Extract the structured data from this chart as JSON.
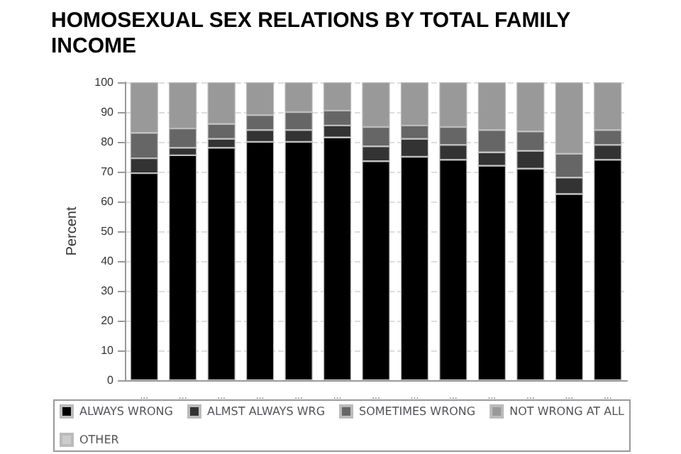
{
  "chart_data": {
    "type": "bar",
    "title": "HOMOSEXUAL SEX RELATIONS BY TOTAL FAMILY INCOME",
    "ylabel": "Percent",
    "stacked": true,
    "categories": [
      "...",
      "...",
      "...",
      "...",
      "...",
      "...",
      "...",
      "...",
      "...",
      "...",
      "...",
      "...",
      "..."
    ],
    "series": [
      {
        "name": "ALWAYS WRONG",
        "color": "#000000",
        "values": [
          69.5,
          75.5,
          78,
          80,
          80,
          81.5,
          73.5,
          75,
          74,
          72,
          71,
          62.5,
          74
        ]
      },
      {
        "name": "ALMST ALWAYS WRG",
        "color": "#333333",
        "values": [
          5,
          2.5,
          3,
          4,
          4,
          4,
          5,
          6,
          5,
          4.5,
          6,
          5.5,
          5
        ]
      },
      {
        "name": "SOMETIMES WRONG",
        "color": "#666666",
        "values": [
          8.5,
          6.5,
          5,
          5,
          6,
          5,
          6.5,
          4.5,
          6,
          7.5,
          6.5,
          8,
          5
        ]
      },
      {
        "name": "NOT WRONG AT ALL",
        "color": "#999999",
        "values": [
          17,
          15.5,
          14,
          11,
          10,
          9.5,
          15,
          14.5,
          15,
          16,
          16.5,
          24,
          16
        ]
      },
      {
        "name": "OTHER",
        "color": "#cccccc",
        "values": [
          null,
          null,
          null,
          null,
          null,
          null,
          null,
          null,
          null,
          null,
          null,
          null,
          null
        ]
      }
    ],
    "ylim": [
      0,
      100
    ],
    "yticks": [
      0,
      10,
      20,
      30,
      40,
      50,
      60,
      70,
      80,
      90,
      100
    ],
    "grid": "y",
    "legend": "bottom"
  }
}
